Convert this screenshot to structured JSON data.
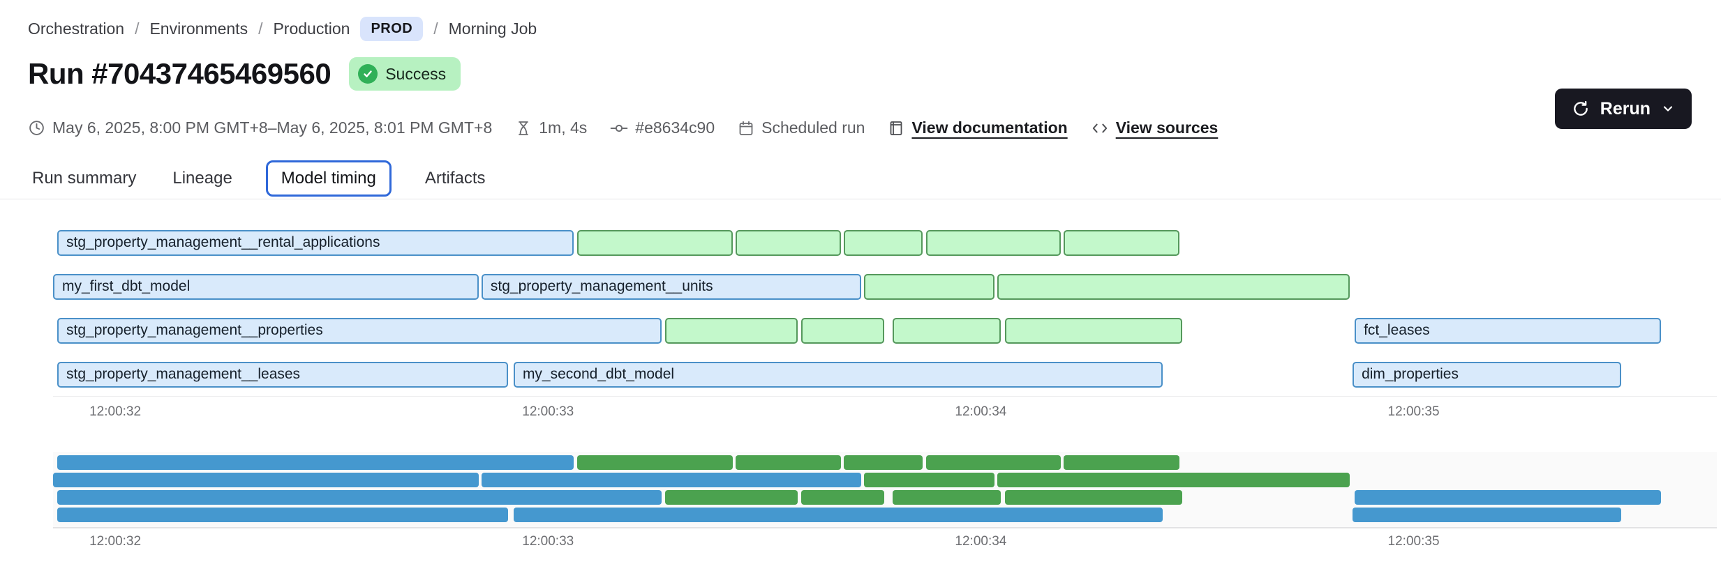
{
  "breadcrumb": {
    "separator": "/",
    "items": [
      {
        "label": "Orchestration"
      },
      {
        "label": "Environments"
      },
      {
        "label": "Production",
        "badge": "PROD"
      },
      {
        "label": "Morning Job"
      }
    ]
  },
  "header": {
    "title": "Run #70437465469560",
    "status_badge": "Success",
    "rerun_button": "Rerun"
  },
  "meta": {
    "time_range": "May 6, 2025, 8:00 PM GMT+8–May 6, 2025, 8:01 PM GMT+8",
    "duration": "1m, 4s",
    "commit_hash": "#e8634c90",
    "trigger": "Scheduled run",
    "documentation_link": "View documentation",
    "sources_link": "View sources"
  },
  "tabs": [
    {
      "label": "Run summary",
      "active": false
    },
    {
      "label": "Lineage",
      "active": false
    },
    {
      "label": "Model timing",
      "active": true
    },
    {
      "label": "Artifacts",
      "active": false
    }
  ],
  "icons": {
    "status": "check-icon",
    "rerun": [
      "refresh-icon",
      "chevron-down-icon"
    ],
    "meta": [
      "clock-icon",
      "hourglass-icon",
      "commit-icon",
      "calendar-icon",
      "book-icon",
      "code-icon"
    ]
  },
  "colors": {
    "model_bar_fill": "#d9eafb",
    "model_bar_border": "#4a90c8",
    "test_bar_fill": "#c3f8cb",
    "test_bar_border": "#55985c",
    "minimap_model": "#4598cf",
    "minimap_test": "#4ba24f",
    "active_tab_border": "#2f68d9",
    "success_badge_bg": "#b7f1c1",
    "success_check_bg": "#30b058",
    "env_badge_bg": "#d9e4fc",
    "rerun_bg": "#181821"
  },
  "chart_data": {
    "type": "gantt",
    "title": "Model timing",
    "x_ticks": [
      {
        "label": "12:00:32",
        "pos_pct": 3.85
      },
      {
        "label": "12:00:33",
        "pos_pct": 30.65
      },
      {
        "label": "12:00:34",
        "pos_pct": 57.45
      },
      {
        "label": "12:00:35",
        "pos_pct": 84.25
      }
    ],
    "kinds": {
      "model": "labeled blue bar",
      "test": "unlabeled green bar"
    },
    "rows": [
      [
        {
          "label": "stg_property_management__rental_applications",
          "kind": "model",
          "left_pct": 0.26,
          "width_pct": 32.0
        },
        {
          "kind": "test",
          "left_pct": 32.45,
          "width_pct": 9.64
        },
        {
          "kind": "test",
          "left_pct": 42.26,
          "width_pct": 6.53
        },
        {
          "kind": "test",
          "left_pct": 48.96,
          "width_pct": 4.88
        },
        {
          "kind": "test",
          "left_pct": 54.06,
          "width_pct": 8.34
        },
        {
          "kind": "test",
          "left_pct": 62.58,
          "width_pct": 7.17
        }
      ],
      [
        {
          "label": "my_first_dbt_model",
          "kind": "model",
          "left_pct": 0.0,
          "width_pct": 26.36
        },
        {
          "label": "stg_property_management__units",
          "kind": "model",
          "left_pct": 26.53,
          "width_pct": 23.51
        },
        {
          "kind": "test",
          "left_pct": 50.22,
          "width_pct": 8.08
        },
        {
          "kind": "test",
          "left_pct": 58.47,
          "width_pct": 21.82
        }
      ],
      [
        {
          "label": "stg_property_management__properties",
          "kind": "model",
          "left_pct": 0.26,
          "width_pct": 37.42
        },
        {
          "kind": "test",
          "left_pct": 37.9,
          "width_pct": 8.21
        },
        {
          "kind": "test",
          "left_pct": 46.33,
          "width_pct": 5.14
        },
        {
          "kind": "test",
          "left_pct": 51.99,
          "width_pct": 6.7
        },
        {
          "kind": "test",
          "left_pct": 58.95,
          "width_pct": 10.98
        },
        {
          "label": "fct_leases",
          "kind": "model",
          "left_pct": 80.6,
          "width_pct": 18.97
        }
      ],
      [
        {
          "label": "stg_property_management__leases",
          "kind": "model",
          "left_pct": 0.26,
          "width_pct": 27.92
        },
        {
          "label": "my_second_dbt_model",
          "kind": "model",
          "left_pct": 28.52,
          "width_pct": 40.19
        },
        {
          "label": "dim_properties",
          "kind": "model",
          "left_pct": 80.47,
          "width_pct": 16.64
        }
      ]
    ],
    "minimap": {
      "mirrors_rows": true,
      "x_ticks_same": true
    }
  }
}
